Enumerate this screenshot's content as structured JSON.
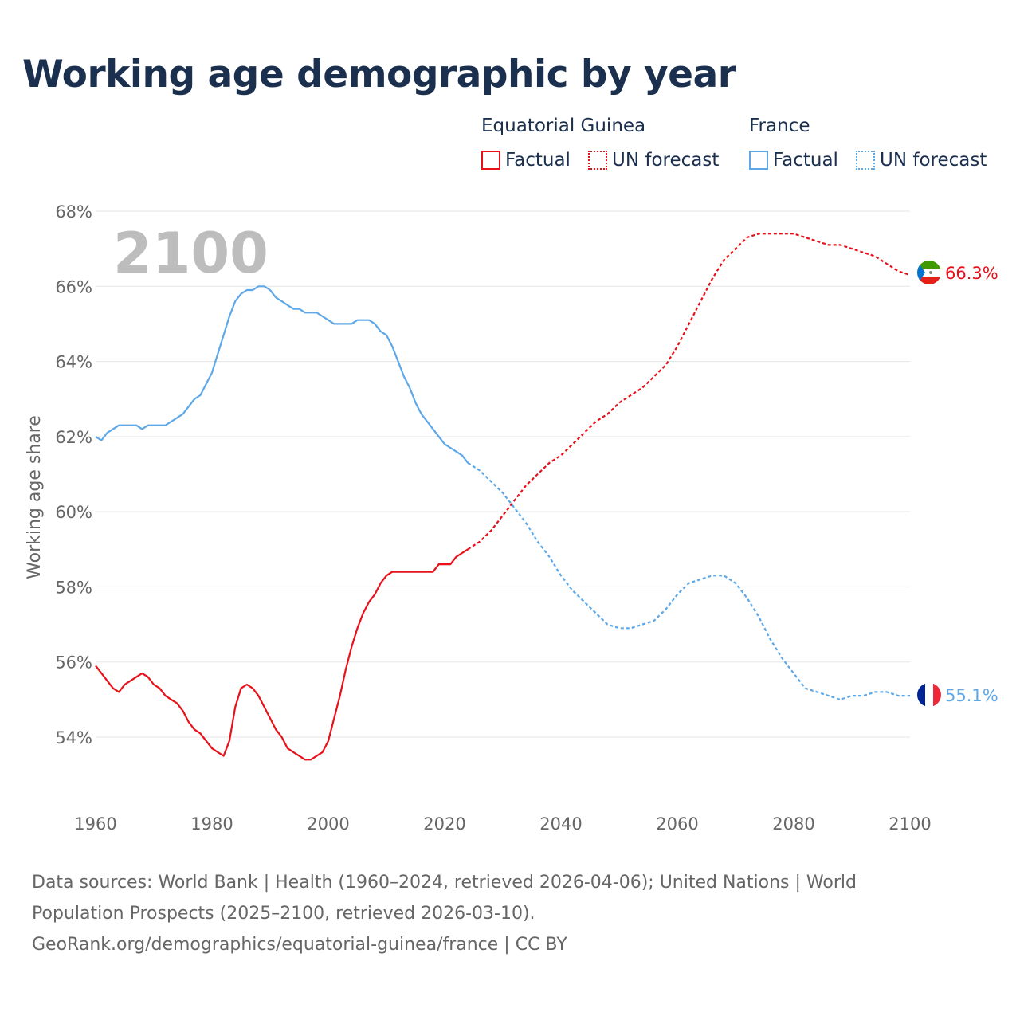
{
  "title": "Working age demographic by year",
  "legend": {
    "groups": [
      {
        "name": "Equatorial Guinea",
        "factual_label": "Factual",
        "forecast_label": "UN forecast",
        "color": "#e8111a"
      },
      {
        "name": "France",
        "factual_label": "Factual",
        "forecast_label": "UN forecast",
        "color": "#5ea8e8"
      }
    ]
  },
  "sources": {
    "line1": "Data sources: World Bank | Health (1960–2024, retrieved 2026-04-06); United Nations | World",
    "line2": "Population Prospects (2025–2100, retrieved 2026-03-10).",
    "line3": "GeoRank.org/demographics/equatorial-guinea/france | CC BY"
  },
  "chart_data": {
    "type": "line",
    "title": "Working age demographic by year",
    "ylabel": "Working age share",
    "xlabel": "",
    "year_watermark": "2100",
    "xlim": [
      1960,
      2100
    ],
    "ylim": [
      52.5,
      68
    ],
    "x_ticks": [
      1960,
      1980,
      2000,
      2020,
      2040,
      2060,
      2080,
      2100
    ],
    "x_tick_labels": [
      "1960",
      "1980",
      "2000",
      "2020",
      "2040",
      "2060",
      "2080",
      "2100"
    ],
    "y_ticks": [
      54,
      56,
      58,
      60,
      62,
      64,
      66,
      68
    ],
    "y_tick_labels": [
      "54%",
      "56%",
      "58%",
      "60%",
      "62%",
      "64%",
      "66%",
      "68%"
    ],
    "grid": true,
    "series": [
      {
        "name": "Equatorial Guinea",
        "color": "#e8111a",
        "end_label": "66.3%",
        "factual": {
          "x": [
            1960,
            1962,
            1963,
            1964,
            1965,
            1966,
            1967,
            1968,
            1969,
            1970,
            1971,
            1972,
            1973,
            1974,
            1975,
            1976,
            1977,
            1978,
            1979,
            1980,
            1981,
            1982,
            1983,
            1984,
            1985,
            1986,
            1987,
            1988,
            1989,
            1990,
            1991,
            1992,
            1993,
            1994,
            1995,
            1996,
            1997,
            1998,
            1999,
            2000,
            2001,
            2002,
            2003,
            2004,
            2005,
            2006,
            2007,
            2008,
            2009,
            2010,
            2011,
            2012,
            2013,
            2014,
            2015,
            2016,
            2017,
            2018,
            2019,
            2020,
            2021,
            2022,
            2023,
            2024
          ],
          "y": [
            55.9,
            55.5,
            55.3,
            55.2,
            55.4,
            55.5,
            55.6,
            55.7,
            55.6,
            55.4,
            55.3,
            55.1,
            55.0,
            54.9,
            54.7,
            54.4,
            54.2,
            54.1,
            53.9,
            53.7,
            53.6,
            53.5,
            53.9,
            54.8,
            55.3,
            55.4,
            55.3,
            55.1,
            54.8,
            54.5,
            54.2,
            54.0,
            53.7,
            53.6,
            53.5,
            53.4,
            53.4,
            53.5,
            53.6,
            53.9,
            54.5,
            55.1,
            55.8,
            56.4,
            56.9,
            57.3,
            57.6,
            57.8,
            58.1,
            58.3,
            58.4,
            58.4,
            58.4,
            58.4,
            58.4,
            58.4,
            58.4,
            58.4,
            58.6,
            58.6,
            58.6,
            58.8,
            58.9,
            59.0
          ]
        },
        "forecast": {
          "x": [
            2024,
            2026,
            2028,
            2030,
            2032,
            2034,
            2036,
            2038,
            2040,
            2042,
            2044,
            2046,
            2048,
            2050,
            2052,
            2054,
            2056,
            2058,
            2060,
            2062,
            2064,
            2066,
            2068,
            2070,
            2072,
            2074,
            2076,
            2078,
            2080,
            2082,
            2084,
            2086,
            2088,
            2090,
            2092,
            2094,
            2096,
            2098,
            2100
          ],
          "y": [
            59.0,
            59.2,
            59.5,
            59.9,
            60.3,
            60.7,
            61.0,
            61.3,
            61.5,
            61.8,
            62.1,
            62.4,
            62.6,
            62.9,
            63.1,
            63.3,
            63.6,
            63.9,
            64.4,
            65.0,
            65.6,
            66.2,
            66.7,
            67.0,
            67.3,
            67.4,
            67.4,
            67.4,
            67.4,
            67.3,
            67.2,
            67.1,
            67.1,
            67.0,
            66.9,
            66.8,
            66.6,
            66.4,
            66.3
          ]
        }
      },
      {
        "name": "France",
        "color": "#5ea8e8",
        "end_label": "55.1%",
        "factual": {
          "x": [
            1960,
            1961,
            1962,
            1963,
            1964,
            1965,
            1966,
            1967,
            1968,
            1969,
            1970,
            1971,
            1972,
            1973,
            1974,
            1975,
            1976,
            1977,
            1978,
            1979,
            1980,
            1981,
            1982,
            1983,
            1984,
            1985,
            1986,
            1987,
            1988,
            1989,
            1990,
            1991,
            1992,
            1993,
            1994,
            1995,
            1996,
            1997,
            1998,
            1999,
            2000,
            2001,
            2002,
            2003,
            2004,
            2005,
            2006,
            2007,
            2008,
            2009,
            2010,
            2011,
            2012,
            2013,
            2014,
            2015,
            2016,
            2017,
            2018,
            2019,
            2020,
            2021,
            2022,
            2023,
            2024
          ],
          "y": [
            62.0,
            61.9,
            62.1,
            62.2,
            62.3,
            62.3,
            62.3,
            62.3,
            62.2,
            62.3,
            62.3,
            62.3,
            62.3,
            62.4,
            62.5,
            62.6,
            62.8,
            63.0,
            63.1,
            63.4,
            63.7,
            64.2,
            64.7,
            65.2,
            65.6,
            65.8,
            65.9,
            65.9,
            66.0,
            66.0,
            65.9,
            65.7,
            65.6,
            65.5,
            65.4,
            65.4,
            65.3,
            65.3,
            65.3,
            65.2,
            65.1,
            65.0,
            65.0,
            65.0,
            65.0,
            65.1,
            65.1,
            65.1,
            65.0,
            64.8,
            64.7,
            64.4,
            64.0,
            63.6,
            63.3,
            62.9,
            62.6,
            62.4,
            62.2,
            62.0,
            61.8,
            61.7,
            61.6,
            61.5,
            61.3
          ]
        },
        "forecast": {
          "x": [
            2024,
            2026,
            2028,
            2030,
            2032,
            2034,
            2036,
            2038,
            2040,
            2042,
            2044,
            2046,
            2048,
            2050,
            2052,
            2054,
            2056,
            2058,
            2060,
            2062,
            2064,
            2066,
            2068,
            2070,
            2072,
            2074,
            2076,
            2078,
            2080,
            2082,
            2084,
            2086,
            2088,
            2090,
            2092,
            2094,
            2096,
            2098,
            2100
          ],
          "y": [
            61.3,
            61.1,
            60.8,
            60.5,
            60.1,
            59.7,
            59.2,
            58.8,
            58.3,
            57.9,
            57.6,
            57.3,
            57.0,
            56.9,
            56.9,
            57.0,
            57.1,
            57.4,
            57.8,
            58.1,
            58.2,
            58.3,
            58.3,
            58.1,
            57.7,
            57.2,
            56.6,
            56.1,
            55.7,
            55.3,
            55.2,
            55.1,
            55.0,
            55.1,
            55.1,
            55.2,
            55.2,
            55.1,
            55.1
          ]
        }
      }
    ]
  }
}
